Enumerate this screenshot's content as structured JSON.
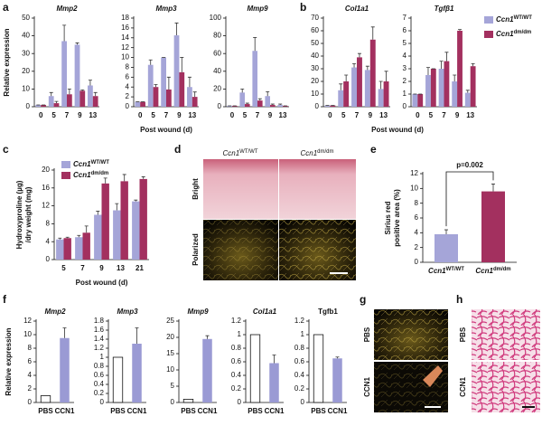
{
  "panel_labels": [
    "a",
    "b",
    "c",
    "d",
    "e",
    "f",
    "g",
    "h"
  ],
  "chart_data": [
    {
      "type": "bar",
      "title": "Mmp2",
      "title_italic": true,
      "ylabel": [
        "Relative expression"
      ],
      "categories": [
        "0",
        "5",
        "7",
        "9",
        "13"
      ],
      "series": [
        {
          "color": "#a5a5d8",
          "values": [
            1,
            6,
            37,
            35,
            12
          ],
          "errors": [
            0,
            2,
            9,
            1,
            3
          ]
        },
        {
          "color": "#a3305f",
          "values": [
            1,
            2,
            7,
            9,
            6
          ],
          "errors": [
            0,
            1,
            3,
            0.5,
            2
          ]
        }
      ],
      "ylim": [
        0,
        50
      ],
      "yticks": [
        0,
        10,
        20,
        30,
        40,
        50
      ]
    },
    {
      "type": "bar",
      "title": "Mmp3",
      "title_italic": true,
      "xlabel": "Post wound (d)",
      "categories": [
        "0",
        "5",
        "7",
        "9",
        "13"
      ],
      "series": [
        {
          "color": "#a5a5d8",
          "values": [
            1,
            8.5,
            10,
            14.5,
            4
          ],
          "errors": [
            0,
            1,
            0,
            2.5,
            2
          ]
        },
        {
          "color": "#a3305f",
          "values": [
            1,
            4,
            3.5,
            7,
            2
          ],
          "errors": [
            0,
            0.5,
            2.5,
            3,
            1
          ]
        }
      ],
      "ylim": [
        0,
        18
      ],
      "yticks": [
        0,
        2,
        4,
        6,
        8,
        10,
        12,
        14,
        16,
        18
      ]
    },
    {
      "type": "bar",
      "title": "Mmp9",
      "title_italic": true,
      "categories": [
        "0",
        "5",
        "7",
        "9",
        "13"
      ],
      "series": [
        {
          "color": "#a5a5d8",
          "values": [
            1,
            16,
            63,
            12,
            2
          ],
          "errors": [
            0,
            4,
            15,
            5,
            1
          ]
        },
        {
          "color": "#a3305f",
          "values": [
            1,
            3,
            7,
            2,
            1
          ],
          "errors": [
            0,
            1,
            2,
            1,
            0
          ]
        }
      ],
      "ylim": [
        0,
        100
      ],
      "yticks": [
        0,
        20,
        40,
        60,
        80,
        100
      ]
    },
    {
      "type": "bar",
      "title": "Col1a1",
      "title_italic": true,
      "xlabel": "Post wound (d)",
      "categories": [
        "0",
        "5",
        "7",
        "9",
        "13"
      ],
      "series": [
        {
          "color": "#a5a5d8",
          "values": [
            1,
            13,
            31,
            29,
            14
          ],
          "errors": [
            0,
            5,
            3,
            3,
            6
          ]
        },
        {
          "color": "#a3305f",
          "values": [
            1,
            20,
            39,
            53,
            20
          ],
          "errors": [
            0,
            5,
            3,
            10,
            8
          ]
        }
      ],
      "ylim": [
        0,
        70
      ],
      "yticks": [
        0,
        10,
        20,
        30,
        40,
        50,
        60,
        70
      ]
    },
    {
      "type": "bar",
      "title": "Tgfβ1",
      "title_italic": true,
      "legend": true,
      "categories": [
        "0",
        "5",
        "7",
        "9",
        "13"
      ],
      "series": [
        {
          "name": "Ccn1",
          "sup": "WT/WT",
          "color": "#a5a5d8",
          "values": [
            1,
            2.5,
            3,
            2,
            1.1
          ],
          "errors": [
            0,
            0.6,
            0.6,
            0.5,
            0.2
          ]
        },
        {
          "name": "Ccn1",
          "sup": "dm/dm",
          "color": "#a3305f",
          "values": [
            1,
            3,
            3.6,
            6,
            3.2
          ],
          "errors": [
            0,
            0,
            0.7,
            0.1,
            0.2
          ]
        }
      ],
      "ylim": [
        0,
        7
      ],
      "yticks": [
        0,
        1,
        2,
        3,
        4,
        5,
        6,
        7
      ]
    },
    {
      "type": "bar",
      "ylabel": [
        "Hydroxyproline (µg)",
        "/dry weight (mg)"
      ],
      "xlabel": "Post wound (d)",
      "legend": true,
      "categories": [
        "5",
        "7",
        "9",
        "13",
        "21"
      ],
      "series": [
        {
          "name": "Ccn1",
          "sup": "WT/WT",
          "color": "#a5a5d8",
          "values": [
            4.5,
            5,
            10,
            11,
            13
          ],
          "errors": [
            0.3,
            0.4,
            0.8,
            1.5,
            0.3
          ]
        },
        {
          "name": "Ccn1",
          "sup": "dm/dm",
          "color": "#a3305f",
          "values": [
            4.8,
            6,
            17,
            17.5,
            18
          ],
          "errors": [
            0.2,
            1.5,
            1.2,
            1.5,
            0.5
          ]
        }
      ],
      "ylim": [
        0,
        20
      ],
      "yticks": [
        0,
        4,
        8,
        12,
        16,
        20
      ]
    },
    {
      "type": "bar",
      "ylabel": [
        "Sirius red",
        "positive area (%)"
      ],
      "categories": [
        "Ccn1",
        "Ccn1"
      ],
      "category_sups": [
        "WT/WT",
        "dm/dm"
      ],
      "values": [
        3.8,
        9.6
      ],
      "errors": [
        0.6,
        1
      ],
      "colors": [
        "#a5a5d8",
        "#a3305f"
      ],
      "annotation": "p=0.002",
      "ylim": [
        0,
        12
      ],
      "yticks": [
        0,
        2,
        4,
        6,
        8,
        10,
        12
      ]
    },
    {
      "type": "bar",
      "title": "Mmp2",
      "title_italic": true,
      "ylabel": [
        "Relative expression"
      ],
      "categories": [
        "PBS",
        "CCN1"
      ],
      "values": [
        1,
        9.5
      ],
      "errors": [
        null,
        1.5
      ],
      "colors": [
        "#ffffff",
        "#9a9ad4"
      ],
      "ylim": [
        0,
        12
      ],
      "yticks": [
        0,
        2,
        4,
        6,
        8,
        10,
        12
      ]
    },
    {
      "type": "bar",
      "title": "Mmp3",
      "title_italic": true,
      "categories": [
        "PBS",
        "CCN1"
      ],
      "values": [
        1,
        1.3
      ],
      "errors": [
        null,
        0.35
      ],
      "colors": [
        "#ffffff",
        "#9a9ad4"
      ],
      "ylim": [
        0,
        1.8
      ],
      "yticks": [
        0,
        0.2,
        0.4,
        0.6,
        0.8,
        1,
        1.2,
        1.4,
        1.6,
        1.8
      ]
    },
    {
      "type": "bar",
      "title": "Mmp9",
      "title_italic": true,
      "categories": [
        "PBS",
        "CCN1"
      ],
      "values": [
        1,
        19.5
      ],
      "errors": [
        null,
        1
      ],
      "colors": [
        "#ffffff",
        "#9a9ad4"
      ],
      "ylim": [
        0,
        25
      ],
      "yticks": [
        0,
        5,
        10,
        15,
        20,
        25
      ]
    },
    {
      "type": "bar",
      "title": "Col1a1",
      "title_italic": true,
      "categories": [
        "PBS",
        "CCN1"
      ],
      "values": [
        1,
        0.58
      ],
      "errors": [
        null,
        0.12
      ],
      "colors": [
        "#ffffff",
        "#9a9ad4"
      ],
      "ylim": [
        0,
        1.2
      ],
      "yticks": [
        0,
        0.2,
        0.4,
        0.6,
        0.8,
        1,
        1.2
      ]
    },
    {
      "type": "bar",
      "title": "Tgfb1",
      "title_italic": false,
      "categories": [
        "PBS",
        "CCN1"
      ],
      "values": [
        1,
        0.65
      ],
      "errors": [
        null,
        0.02
      ],
      "colors": [
        "#ffffff",
        "#9a9ad4"
      ],
      "ylim": [
        0,
        1.2
      ],
      "yticks": [
        0,
        0.2,
        0.4,
        0.6,
        0.8,
        1,
        1.2
      ]
    }
  ],
  "images": {
    "d": {
      "columns": [
        "Ccn1",
        "Ccn1"
      ],
      "column_sups": [
        "WT/WT",
        "dm/dm"
      ],
      "rows": [
        "Bright",
        "Polarized"
      ]
    },
    "g": {
      "rows": [
        "PBS",
        "CCN1"
      ]
    },
    "h": {
      "rows": [
        "PBS",
        "CCN1"
      ]
    }
  }
}
